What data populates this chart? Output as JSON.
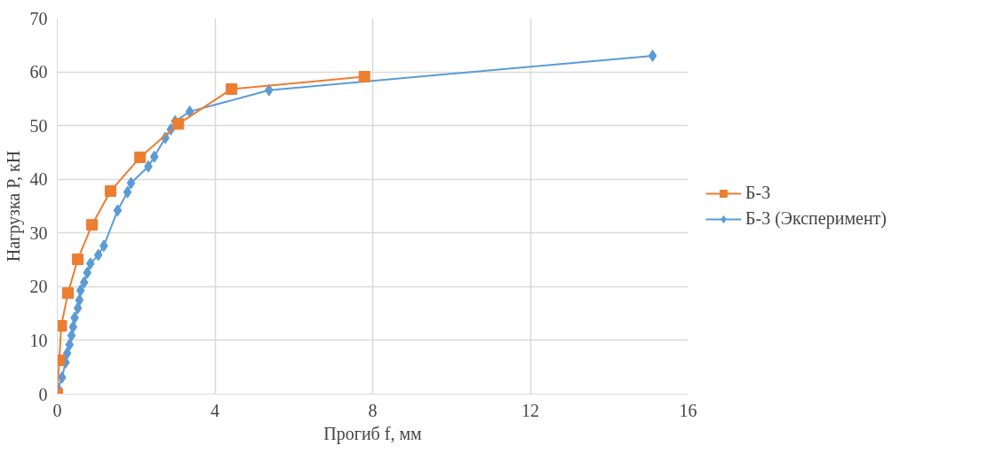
{
  "chart_data": {
    "type": "line",
    "xlabel": "Прогиб f, мм",
    "ylabel": "Нагрузка P, кН",
    "xlim": [
      0,
      16
    ],
    "ylim": [
      0,
      70
    ],
    "xticks": [
      0,
      4,
      8,
      12,
      16
    ],
    "yticks": [
      0,
      10,
      20,
      30,
      40,
      50,
      60,
      70
    ],
    "grid": true,
    "legend": "right",
    "series": [
      {
        "name": "Б-3",
        "color": "#ed7d31",
        "marker": "square",
        "x": [
          0,
          0.05,
          0.1,
          0.27,
          0.52,
          0.88,
          1.35,
          2.1,
          3.07,
          4.42,
          7.79
        ],
        "values": [
          0,
          6.3,
          12.7,
          18.8,
          25.1,
          31.5,
          37.8,
          44.1,
          50.3,
          56.8,
          59.1
        ]
      },
      {
        "name": "Б-3 (Эксперимент)",
        "color": "#5b9bd5",
        "marker": "diamond",
        "x": [
          0,
          0.02,
          0.12,
          0.21,
          0.25,
          0.31,
          0.36,
          0.4,
          0.44,
          0.52,
          0.56,
          0.59,
          0.68,
          0.76,
          0.84,
          1.04,
          1.18,
          1.53,
          1.78,
          1.87,
          2.31,
          2.46,
          2.74,
          2.88,
          2.99,
          3.36,
          5.37,
          15.1
        ],
        "values": [
          0,
          1.0,
          3.1,
          5.9,
          7.6,
          9.2,
          10.9,
          12.5,
          14.2,
          16.0,
          17.5,
          19.3,
          20.8,
          22.6,
          24.3,
          25.9,
          27.6,
          34.2,
          37.6,
          39.3,
          42.4,
          44.2,
          47.7,
          49.3,
          50.8,
          52.6,
          56.6,
          63.0
        ]
      }
    ]
  }
}
